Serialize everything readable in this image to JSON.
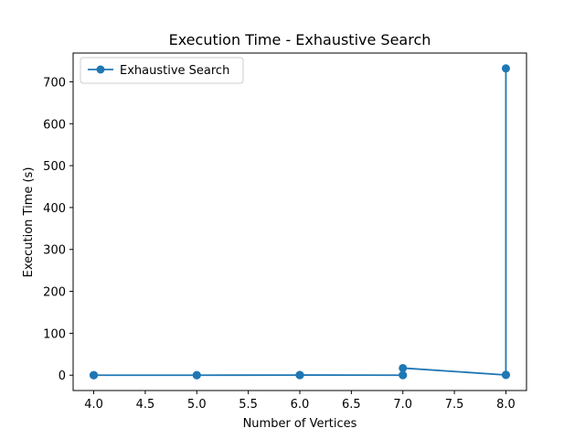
{
  "chart_data": {
    "type": "line",
    "title": "Execution Time - Exhaustive Search",
    "xlabel": "Number of Vertices",
    "ylabel": "Execution Time (s)",
    "xlim": [
      3.8,
      8.2
    ],
    "ylim": [
      -36.6,
      768.6
    ],
    "xticks": [
      4.0,
      4.5,
      5.0,
      5.5,
      6.0,
      6.5,
      7.0,
      7.5,
      8.0
    ],
    "xtick_labels": [
      "4.0",
      "4.5",
      "5.0",
      "5.5",
      "6.0",
      "6.5",
      "7.0",
      "7.5",
      "8.0"
    ],
    "yticks": [
      0,
      100,
      200,
      300,
      400,
      500,
      600,
      700
    ],
    "ytick_labels": [
      "0",
      "100",
      "200",
      "300",
      "400",
      "500",
      "600",
      "700"
    ],
    "grid": false,
    "legend": "upper-left",
    "series": [
      {
        "name": "Exhaustive Search",
        "color": "#1f77b4",
        "marker": "circle",
        "points": [
          [
            4,
            0.0
          ],
          [
            4,
            0.0
          ],
          [
            4,
            0.0
          ],
          [
            5,
            0.0
          ],
          [
            5,
            0.0
          ],
          [
            5,
            0.0
          ],
          [
            6,
            0.2
          ],
          [
            6,
            0.3
          ],
          [
            6,
            0.4
          ],
          [
            7,
            0.0
          ],
          [
            7,
            0.3
          ],
          [
            7,
            17.0
          ],
          [
            8,
            0.5
          ],
          [
            8,
            0.9
          ],
          [
            8,
            732.0
          ]
        ]
      }
    ]
  }
}
